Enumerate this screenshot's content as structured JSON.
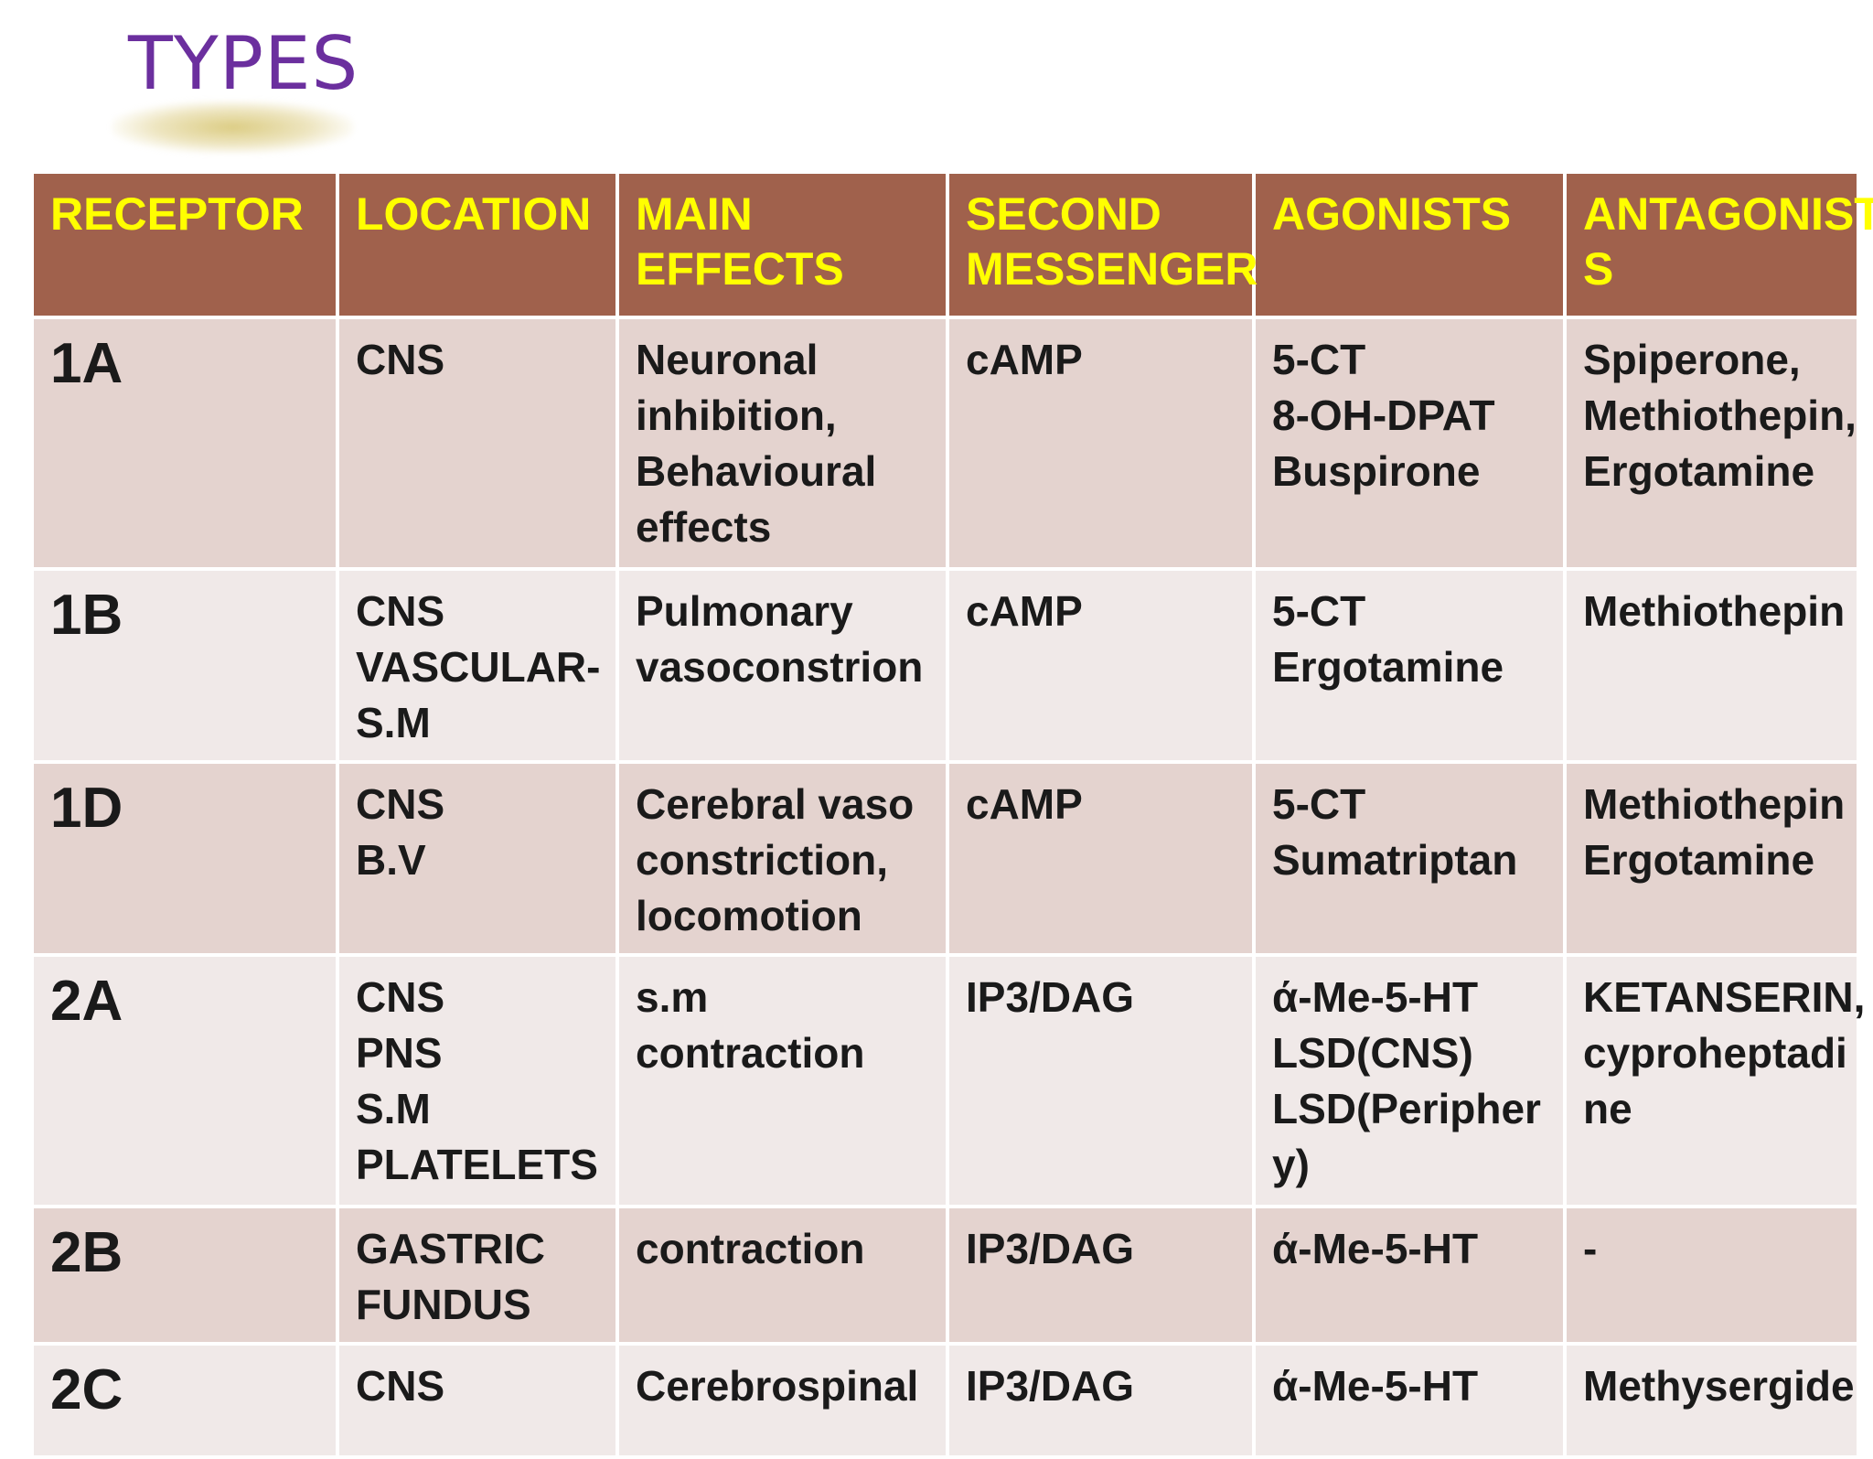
{
  "slide": {
    "title": "TYPES"
  },
  "table": {
    "headers": [
      "RECEPTOR",
      "LOCATION",
      "MAIN\nEFFECTS",
      "SECOND\nMESSENGER",
      "AGONISTS",
      "ANTAGONIST\nS"
    ],
    "rows": [
      {
        "receptor": "1A",
        "location": "CNS",
        "effects": "Neuronal\ninhibition,\nBehavioural\neffects",
        "messenger": "cAMP",
        "agonists": "5-CT\n8-OH-DPAT\nBuspirone",
        "antagonists": "Spiperone,\nMethiothepin,\nErgotamine"
      },
      {
        "receptor": "1B",
        "location": "CNS\nVASCULAR-\nS.M",
        "effects": "Pulmonary\nvasoconstrion",
        "messenger": "cAMP",
        "agonists": "5-CT\nErgotamine",
        "antagonists": "Methiothepin"
      },
      {
        "receptor": "1D",
        "location": "CNS\nB.V",
        "effects": "Cerebral vaso\nconstriction,\nlocomotion",
        "messenger": "cAMP",
        "agonists": "5-CT\nSumatriptan",
        "antagonists": "Methiothepin\nErgotamine"
      },
      {
        "receptor": "2A",
        "location": "CNS\nPNS\nS.M\nPLATELETS",
        "effects": "s.m\ncontraction",
        "messenger": "IP3/DAG",
        "agonists": "ά-Me-5-HT\nLSD(CNS)\nLSD(Peripher\ny)",
        "antagonists": "KETANSERIN,\ncyproheptadi\nne"
      },
      {
        "receptor": "2B",
        "location": "GASTRIC\nFUNDUS",
        "effects": "contraction",
        "messenger": "IP3/DAG",
        "agonists": "ά-Me-5-HT",
        "antagonists": "-"
      },
      {
        "receptor": "2C",
        "location": "CNS",
        "effects": "Cerebrospinal",
        "messenger": "IP3/DAG",
        "agonists": "ά-Me-5-HT",
        "antagonists": "Methysergide"
      }
    ]
  },
  "colors": {
    "title": "#6b2f9e",
    "header_bg": "#a0614c",
    "header_text": "#ffff00",
    "row_odd_bg": "#e4d3cf",
    "row_even_bg": "#f0e9e8",
    "cell_text": "#1a1a1a"
  }
}
